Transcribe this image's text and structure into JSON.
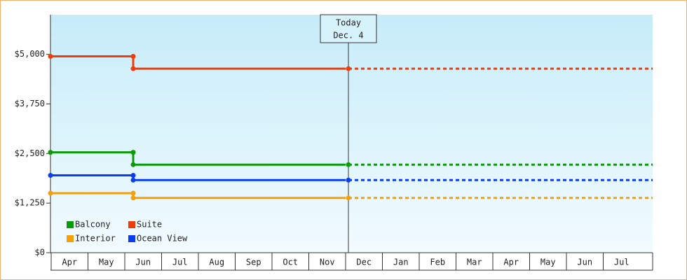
{
  "chart_data": {
    "type": "step-line",
    "categories": [
      "Apr",
      "May",
      "Jun",
      "Jul",
      "Aug",
      "Sep",
      "Oct",
      "Nov",
      "Dec",
      "Jan",
      "Feb",
      "Mar",
      "Apr",
      "May",
      "Jun",
      "Jul"
    ],
    "series": [
      {
        "name": "Balcony",
        "color": "#0a9a0a",
        "values": [
          2530,
          2530,
          2220,
          2220,
          2220,
          2220,
          2220,
          2220,
          2220,
          null,
          null,
          null,
          null,
          null,
          null,
          null
        ]
      },
      {
        "name": "Suite",
        "color": "#f03c0a",
        "values": [
          4950,
          4950,
          4640,
          4640,
          4640,
          4640,
          4640,
          4640,
          4640,
          null,
          null,
          null,
          null,
          null,
          null,
          null
        ]
      },
      {
        "name": "Interior",
        "color": "#f5a00a",
        "values": [
          1500,
          1500,
          1380,
          1380,
          1380,
          1380,
          1380,
          1380,
          1380,
          null,
          null,
          null,
          null,
          null,
          null,
          null
        ]
      },
      {
        "name": "Ocean View",
        "color": "#0a3cf0",
        "values": [
          1950,
          1950,
          1830,
          1830,
          1830,
          1830,
          1830,
          1830,
          1830,
          null,
          null,
          null,
          null,
          null,
          null,
          null
        ]
      }
    ],
    "ylim": [
      0,
      6000
    ],
    "yticks": [
      {
        "value": 0,
        "label": "$0"
      },
      {
        "value": 1250,
        "label": "$1,250"
      },
      {
        "value": 2500,
        "label": "$2,500"
      },
      {
        "value": 3750,
        "label": "$3,750"
      },
      {
        "value": 5000,
        "label": "$5,000"
      }
    ],
    "annotation": {
      "label": "Today",
      "date": "Dec. 4"
    },
    "projection": "dotted"
  }
}
